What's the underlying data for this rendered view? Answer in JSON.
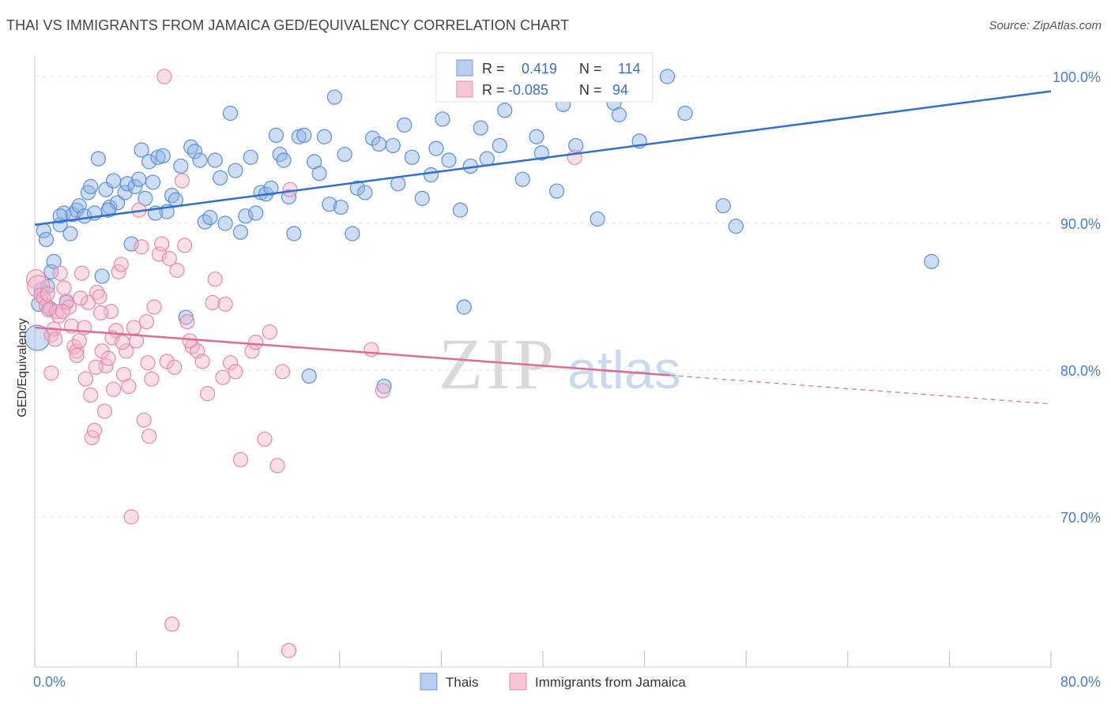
{
  "title": "THAI VS IMMIGRANTS FROM JAMAICA GED/EQUIVALENCY CORRELATION CHART",
  "source": "Source: ZipAtlas.com",
  "watermark": {
    "zip": "ZIP",
    "atlas": "atlas"
  },
  "chart_data": {
    "type": "scatter",
    "title": "THAI VS IMMIGRANTS FROM JAMAICA GED/EQUIVALENCY CORRELATION CHART",
    "xlabel": "",
    "ylabel": "GED/Equivalency",
    "xlim": [
      0,
      80
    ],
    "ylim": [
      61,
      101
    ],
    "x_tick_labels": [
      {
        "value": 0,
        "label": "0.0%"
      },
      {
        "value": 80,
        "label": "80.0%"
      }
    ],
    "y_tick_labels": [
      {
        "value": 100,
        "label": "100.0%"
      },
      {
        "value": 90,
        "label": "90.0%"
      },
      {
        "value": 80,
        "label": "80.0%"
      },
      {
        "value": 70,
        "label": "70.0%"
      }
    ],
    "grid": true,
    "legend_position": "bottom",
    "stats": [
      {
        "r_label": "R =",
        "r": "0.419",
        "n_label": "N =",
        "n": "114"
      },
      {
        "r_label": "R =",
        "r": "-0.085",
        "n_label": "N =",
        "n": "94"
      }
    ],
    "series": [
      {
        "name": "Thais",
        "color": "#8fb4e6",
        "stroke": "#5b8fd6",
        "trend": {
          "x0": 0,
          "y0": 89.9,
          "x1": 80,
          "y1": 99.0,
          "dashed_from": null,
          "line_color": "#2f6fd0"
        },
        "points": [
          [
            0.2,
            82.2
          ],
          [
            0.3,
            84.5
          ],
          [
            0.5,
            85.5
          ],
          [
            0.7,
            89.5
          ],
          [
            0.9,
            88.9
          ],
          [
            1.0,
            85.7
          ],
          [
            1.2,
            84.2
          ],
          [
            1.3,
            86.7
          ],
          [
            1.5,
            87.4
          ],
          [
            2.0,
            89.9
          ],
          [
            2.3,
            90.7
          ],
          [
            2.8,
            89.3
          ],
          [
            2.5,
            84.6
          ],
          [
            3.0,
            90.6
          ],
          [
            3.3,
            90.9
          ],
          [
            3.5,
            91.2
          ],
          [
            3.9,
            90.5
          ],
          [
            4.2,
            92.1
          ],
          [
            4.4,
            92.5
          ],
          [
            4.7,
            90.7
          ],
          [
            5.0,
            94.4
          ],
          [
            5.3,
            86.4
          ],
          [
            5.6,
            92.3
          ],
          [
            5.9,
            91.1
          ],
          [
            6.2,
            92.9
          ],
          [
            6.5,
            91.4
          ],
          [
            7.1,
            92.1
          ],
          [
            7.3,
            92.7
          ],
          [
            7.6,
            88.6
          ],
          [
            7.9,
            92.5
          ],
          [
            8.2,
            93.0
          ],
          [
            8.4,
            95.0
          ],
          [
            8.7,
            91.7
          ],
          [
            9.0,
            94.2
          ],
          [
            9.3,
            92.8
          ],
          [
            9.7,
            94.5
          ],
          [
            10.1,
            94.6
          ],
          [
            10.4,
            90.8
          ],
          [
            10.8,
            91.9
          ],
          [
            11.1,
            91.6
          ],
          [
            11.5,
            93.9
          ],
          [
            11.9,
            83.6
          ],
          [
            12.3,
            95.2
          ],
          [
            12.6,
            94.9
          ],
          [
            13.0,
            94.3
          ],
          [
            13.4,
            90.1
          ],
          [
            13.8,
            90.4
          ],
          [
            14.2,
            94.3
          ],
          [
            14.6,
            93.1
          ],
          [
            15.0,
            90.0
          ],
          [
            15.4,
            97.5
          ],
          [
            15.8,
            93.6
          ],
          [
            16.2,
            89.4
          ],
          [
            16.6,
            90.5
          ],
          [
            17.0,
            94.5
          ],
          [
            17.4,
            90.7
          ],
          [
            17.8,
            92.1
          ],
          [
            18.2,
            92.0
          ],
          [
            18.6,
            92.4
          ],
          [
            19.0,
            96.0
          ],
          [
            19.3,
            94.7
          ],
          [
            19.6,
            94.3
          ],
          [
            20.0,
            91.8
          ],
          [
            20.4,
            89.3
          ],
          [
            20.8,
            95.9
          ],
          [
            21.2,
            96.0
          ],
          [
            21.6,
            79.6
          ],
          [
            22.0,
            94.2
          ],
          [
            22.4,
            93.4
          ],
          [
            22.8,
            95.9
          ],
          [
            23.2,
            91.3
          ],
          [
            23.6,
            98.6
          ],
          [
            24.1,
            91.1
          ],
          [
            24.4,
            94.7
          ],
          [
            25.0,
            89.3
          ],
          [
            25.4,
            92.4
          ],
          [
            26.0,
            92.1
          ],
          [
            26.6,
            95.8
          ],
          [
            27.1,
            95.4
          ],
          [
            27.5,
            78.9
          ],
          [
            28.2,
            95.3
          ],
          [
            28.6,
            92.7
          ],
          [
            29.1,
            96.7
          ],
          [
            29.7,
            94.5
          ],
          [
            30.5,
            91.7
          ],
          [
            31.2,
            93.3
          ],
          [
            31.6,
            95.1
          ],
          [
            32.1,
            97.1
          ],
          [
            32.6,
            94.3
          ],
          [
            33.5,
            90.9
          ],
          [
            33.8,
            84.3
          ],
          [
            34.3,
            93.9
          ],
          [
            35.1,
            96.5
          ],
          [
            35.6,
            94.4
          ],
          [
            36.6,
            95.3
          ],
          [
            37.0,
            97.7
          ],
          [
            38.4,
            93.0
          ],
          [
            39.5,
            95.9
          ],
          [
            39.9,
            94.8
          ],
          [
            41.1,
            92.2
          ],
          [
            41.6,
            98.1
          ],
          [
            42.6,
            95.3
          ],
          [
            44.3,
            90.3
          ],
          [
            45.6,
            98.2
          ],
          [
            46.0,
            97.4
          ],
          [
            47.6,
            95.6
          ],
          [
            49.8,
            100.0
          ],
          [
            51.2,
            97.5
          ],
          [
            54.2,
            91.2
          ],
          [
            55.2,
            89.8
          ],
          [
            70.6,
            87.4
          ],
          [
            5.8,
            90.9
          ],
          [
            2.0,
            90.5
          ],
          [
            9.5,
            90.7
          ]
        ]
      },
      {
        "name": "Immigrants from Jamaica",
        "color": "#f5b6cb",
        "stroke": "#e987a8",
        "trend": {
          "x0": 0,
          "y0": 82.9,
          "x1": 80,
          "y1": 77.7,
          "dashed_from": 50.0,
          "line_color": "#e06996"
        },
        "points": [
          [
            0.1,
            86.2
          ],
          [
            0.3,
            85.7
          ],
          [
            0.5,
            85.1
          ],
          [
            0.7,
            84.9
          ],
          [
            0.9,
            84.4
          ],
          [
            1.0,
            85.2
          ],
          [
            1.1,
            84.1
          ],
          [
            1.3,
            82.4
          ],
          [
            1.5,
            82.8
          ],
          [
            1.7,
            84.0
          ],
          [
            1.9,
            83.7
          ],
          [
            1.3,
            79.8
          ],
          [
            2.0,
            86.6
          ],
          [
            2.3,
            85.6
          ],
          [
            2.5,
            84.7
          ],
          [
            2.7,
            84.3
          ],
          [
            2.9,
            83.0
          ],
          [
            3.1,
            81.6
          ],
          [
            3.3,
            81.3
          ],
          [
            3.5,
            82.0
          ],
          [
            3.3,
            81.0
          ],
          [
            3.7,
            86.6
          ],
          [
            3.9,
            82.9
          ],
          [
            4.0,
            79.4
          ],
          [
            4.2,
            84.6
          ],
          [
            4.4,
            78.3
          ],
          [
            4.5,
            75.4
          ],
          [
            4.7,
            75.9
          ],
          [
            4.9,
            85.3
          ],
          [
            5.1,
            85.0
          ],
          [
            5.3,
            81.3
          ],
          [
            5.5,
            77.2
          ],
          [
            5.6,
            80.3
          ],
          [
            5.8,
            80.8
          ],
          [
            6.0,
            84.0
          ],
          [
            6.2,
            78.7
          ],
          [
            6.4,
            82.7
          ],
          [
            6.6,
            86.7
          ],
          [
            6.8,
            87.2
          ],
          [
            7.0,
            79.7
          ],
          [
            7.2,
            81.3
          ],
          [
            7.4,
            78.9
          ],
          [
            7.6,
            70.0
          ],
          [
            7.8,
            82.9
          ],
          [
            8.0,
            82.0
          ],
          [
            8.2,
            90.9
          ],
          [
            8.4,
            88.4
          ],
          [
            8.6,
            76.6
          ],
          [
            8.8,
            83.3
          ],
          [
            9.0,
            75.5
          ],
          [
            9.2,
            79.4
          ],
          [
            9.4,
            84.3
          ],
          [
            9.8,
            87.9
          ],
          [
            10.0,
            88.6
          ],
          [
            10.2,
            100.0
          ],
          [
            10.4,
            80.6
          ],
          [
            10.6,
            87.6
          ],
          [
            10.8,
            62.7
          ],
          [
            11.0,
            80.2
          ],
          [
            11.2,
            86.8
          ],
          [
            11.6,
            92.9
          ],
          [
            11.8,
            88.5
          ],
          [
            12.0,
            83.3
          ],
          [
            12.4,
            81.6
          ],
          [
            12.8,
            81.3
          ],
          [
            13.2,
            80.6
          ],
          [
            13.6,
            78.4
          ],
          [
            14.0,
            84.6
          ],
          [
            14.2,
            86.2
          ],
          [
            14.8,
            79.5
          ],
          [
            15.0,
            84.5
          ],
          [
            15.4,
            80.5
          ],
          [
            15.8,
            79.9
          ],
          [
            16.2,
            73.9
          ],
          [
            17.1,
            81.3
          ],
          [
            17.4,
            81.9
          ],
          [
            18.1,
            75.3
          ],
          [
            18.5,
            82.6
          ],
          [
            19.1,
            73.5
          ],
          [
            19.5,
            79.9
          ],
          [
            20.0,
            60.9
          ],
          [
            20.1,
            92.3
          ],
          [
            26.5,
            81.4
          ],
          [
            27.4,
            78.6
          ],
          [
            42.5,
            94.5
          ],
          [
            3.6,
            84.9
          ],
          [
            4.8,
            80.2
          ],
          [
            6.1,
            82.2
          ],
          [
            6.9,
            81.9
          ],
          [
            5.2,
            83.9
          ],
          [
            8.9,
            80.5
          ],
          [
            12.2,
            82.0
          ],
          [
            2.2,
            84.0
          ],
          [
            1.6,
            82.1
          ]
        ]
      }
    ]
  }
}
